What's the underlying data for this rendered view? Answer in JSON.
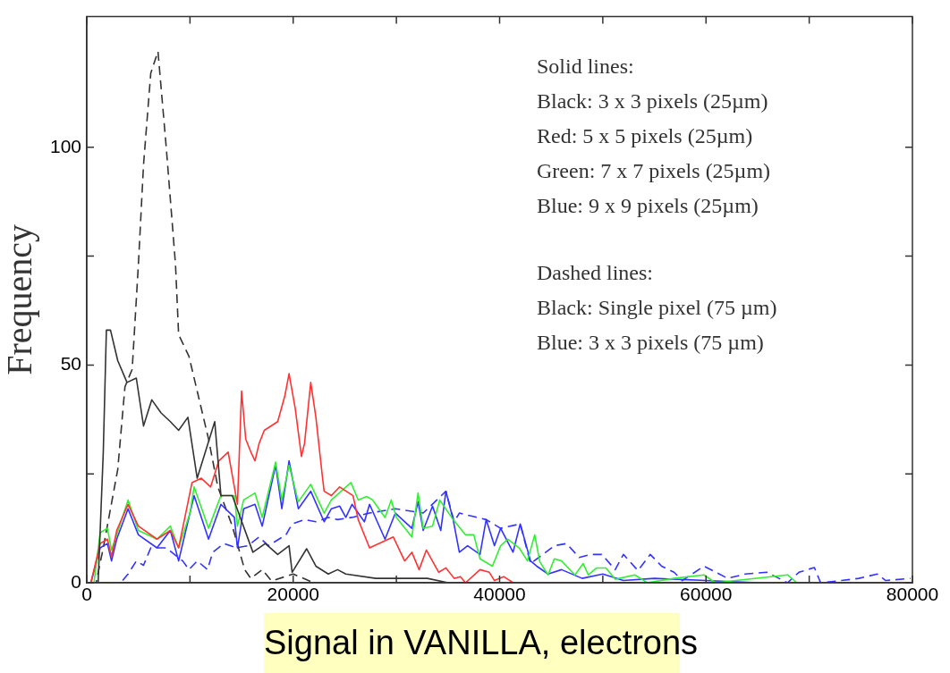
{
  "chart_data": {
    "type": "line",
    "xlabel": "Signal in VANILLA, electrons",
    "ylabel": "Frequency",
    "xlim": [
      0,
      80000
    ],
    "ylim": [
      0,
      130
    ],
    "xticks": [
      0,
      {
        "value": 10000,
        "label": null
      },
      20000,
      {
        "value": 30000,
        "label": null
      },
      40000,
      {
        "value": 50000,
        "label": null
      },
      60000,
      {
        "value": 70000,
        "label": null
      },
      80000
    ],
    "yticks": [
      0,
      {
        "value": 25,
        "label": null
      },
      50,
      {
        "value": 75,
        "label": null
      },
      100
    ],
    "grid": false,
    "legend": false,
    "marker": "none",
    "annotations": [
      "Solid lines:",
      "Black: 3 x 3 pixels (25µm)",
      "Red: 5 x 5 pixels (25µm)",
      "Green: 7 x 7 pixels (25µm)",
      "Blue: 9 x 9 pixels (25µm)",
      "Dashed lines:",
      "Black: Single pixel (75 µm)",
      "Blue: 3 x 3 pixels (75 µm)"
    ],
    "series": [
      {
        "color": "#333333",
        "line_style": "solid",
        "x": [
          1100,
          1600,
          1900,
          2300,
          3000,
          3900,
          4800,
          5500,
          6300,
          7200,
          8100,
          8900,
          9800,
          10700,
          12400,
          13000,
          14100,
          16100,
          17300,
          18500,
          19600,
          19900,
          21300,
          22200,
          23400,
          24300,
          25100,
          28000,
          33000,
          35000,
          40000,
          80000
        ],
        "values": [
          0,
          30,
          58,
          58,
          51,
          46,
          47,
          36,
          42,
          39,
          37,
          35,
          38,
          24,
          37,
          20,
          20,
          7,
          9,
          6.5,
          8.5,
          2.4,
          7.8,
          3.8,
          2,
          3,
          2,
          1,
          1,
          0,
          0,
          0
        ]
      },
      {
        "color": "#ff3333",
        "line_style": "solid",
        "x": [
          400,
          1300,
          2000,
          2400,
          2900,
          4000,
          5000,
          6800,
          8100,
          8900,
          10200,
          11100,
          12000,
          12800,
          13700,
          14300,
          14600,
          15000,
          15400,
          15900,
          16300,
          16700,
          17200,
          18500,
          19200,
          19600,
          20200,
          20800,
          21100,
          21700,
          22200,
          22800,
          23000,
          23700,
          24500,
          25800,
          26300,
          27400,
          29700,
          30800,
          31500,
          32200,
          32900,
          34100,
          34800,
          35600,
          36200,
          36700,
          38100,
          39000,
          39500,
          40400,
          41300,
          80000
        ],
        "values": [
          0,
          9,
          10,
          6,
          12,
          18,
          13,
          10,
          12,
          8,
          23,
          24,
          22,
          28,
          30,
          22,
          18,
          44,
          33,
          30,
          28,
          32,
          35,
          37,
          43,
          48,
          40,
          29,
          32,
          46,
          38,
          25,
          21,
          20,
          22,
          20,
          14.5,
          8,
          10.5,
          5,
          7,
          3,
          7.5,
          2.4,
          3.4,
          1,
          1.4,
          0,
          3,
          2.4,
          0.5,
          1.4,
          0,
          0
        ]
      },
      {
        "color": "#33ee33",
        "line_style": "solid",
        "x": [
          700,
          1300,
          2000,
          2400,
          2900,
          4000,
          5000,
          6800,
          8100,
          8900,
          10000,
          10400,
          11800,
          13000,
          14300,
          14600,
          15200,
          16300,
          17000,
          18300,
          18900,
          19600,
          20500,
          21700,
          23000,
          23700,
          25600,
          26300,
          27100,
          27700,
          28900,
          29500,
          30000,
          31500,
          32100,
          32600,
          33500,
          34200,
          35500,
          36700,
          37500,
          38100,
          39300,
          40100,
          40800,
          41900,
          42700,
          43400,
          43900,
          44700,
          45300,
          46000,
          47300,
          48100,
          48600,
          49400,
          50300,
          51200,
          53100,
          54300,
          56900,
          59800,
          60900,
          67900,
          68800,
          80000
        ],
        "values": [
          0,
          11.5,
          12.5,
          7.5,
          11,
          19,
          12,
          10,
          13,
          8,
          16,
          22,
          12.5,
          20,
          20,
          13,
          19,
          20.6,
          15,
          27.7,
          19,
          27,
          18.6,
          22.6,
          16,
          19,
          23,
          19,
          19.8,
          19,
          15,
          19,
          15,
          10.5,
          20.6,
          12.5,
          13,
          19,
          14.5,
          11,
          11,
          5.5,
          3.8,
          8.5,
          10,
          8,
          5,
          11,
          4.8,
          1.8,
          5.5,
          5,
          1.8,
          4.4,
          1.8,
          3.4,
          3.4,
          0.8,
          1.8,
          0,
          1,
          1.8,
          0,
          1.8,
          0,
          0
        ]
      },
      {
        "color": "#3333ff",
        "line_style": "solid",
        "x": [
          400,
          1300,
          2000,
          2400,
          2900,
          4000,
          5000,
          6800,
          8100,
          8900,
          10400,
          11800,
          13000,
          14300,
          14600,
          15200,
          16300,
          17000,
          18300,
          18900,
          19600,
          20500,
          21700,
          23000,
          23700,
          24500,
          25100,
          25700,
          26900,
          27400,
          28900,
          29900,
          31500,
          32100,
          32600,
          33500,
          34300,
          34800,
          35500,
          36100,
          36900,
          38100,
          38700,
          39500,
          40100,
          41300,
          42000,
          43000,
          43600,
          44700,
          46000,
          48000,
          50000,
          52000,
          55000,
          60000,
          65000,
          80000
        ],
        "values": [
          0,
          8,
          9,
          5,
          10,
          17,
          11,
          8,
          12,
          5,
          20,
          10,
          18,
          15,
          8,
          17,
          18,
          13,
          27,
          17,
          28,
          17,
          21,
          14,
          17,
          17.6,
          15,
          18,
          14,
          18,
          10,
          16,
          12.5,
          18.6,
          12,
          17.6,
          12,
          21,
          14.5,
          7,
          8.5,
          6.5,
          14.5,
          8.5,
          12.5,
          7,
          13.5,
          5,
          3.8,
          2,
          3,
          1,
          2,
          0.5,
          1,
          0.5,
          0,
          0
        ]
      },
      {
        "color": "#333333",
        "line_style": "dashed",
        "x": [
          300,
          900,
          1600,
          3000,
          3700,
          4400,
          5000,
          5500,
          6200,
          6900,
          7700,
          8600,
          8900,
          9900,
          10600,
          11800,
          12700,
          14100,
          15300,
          15900,
          17000,
          17900,
          20000,
          22000,
          30000,
          80000
        ],
        "values": [
          0,
          0,
          8,
          26,
          45,
          49,
          73,
          96,
          117,
          122,
          100,
          73,
          57,
          52,
          45,
          33,
          22,
          13,
          3,
          1,
          3,
          0.4,
          2,
          0,
          0,
          0
        ]
      },
      {
        "color": "#3333ff",
        "line_style": "dashed",
        "x": [
          800,
          3300,
          4000,
          4800,
          5500,
          6200,
          7700,
          9300,
          9900,
          10700,
          11700,
          12200,
          13300,
          14500,
          15600,
          16700,
          17600,
          19300,
          19900,
          21100,
          22200,
          23400,
          24300,
          25700,
          27400,
          29900,
          32600,
          34800,
          35600,
          36100,
          38700,
          40100,
          42000,
          43000,
          44200,
          45300,
          46500,
          47700,
          48800,
          49900,
          51200,
          52000,
          53400,
          54600,
          55700,
          56900,
          57700,
          59800,
          62100,
          63800,
          65900,
          67900,
          69000,
          70500,
          71100,
          73100,
          74800,
          76600,
          77400,
          79800
        ],
        "values": [
          0,
          0,
          2,
          5,
          4,
          8,
          8,
          5,
          3,
          5,
          3,
          7,
          9,
          8,
          8.5,
          10.5,
          8.5,
          11,
          13.5,
          14.5,
          14,
          15,
          14.5,
          15,
          16,
          17,
          16,
          21,
          14,
          16,
          14.5,
          12.5,
          13.5,
          4.4,
          6.5,
          8.5,
          9,
          5.8,
          6.5,
          6.5,
          3,
          6.5,
          2.8,
          6.5,
          3.8,
          2.4,
          0.5,
          3.8,
          1,
          2,
          2.4,
          0,
          2.4,
          3.5,
          0,
          0.5,
          1,
          2,
          0.5,
          1
        ]
      }
    ]
  }
}
